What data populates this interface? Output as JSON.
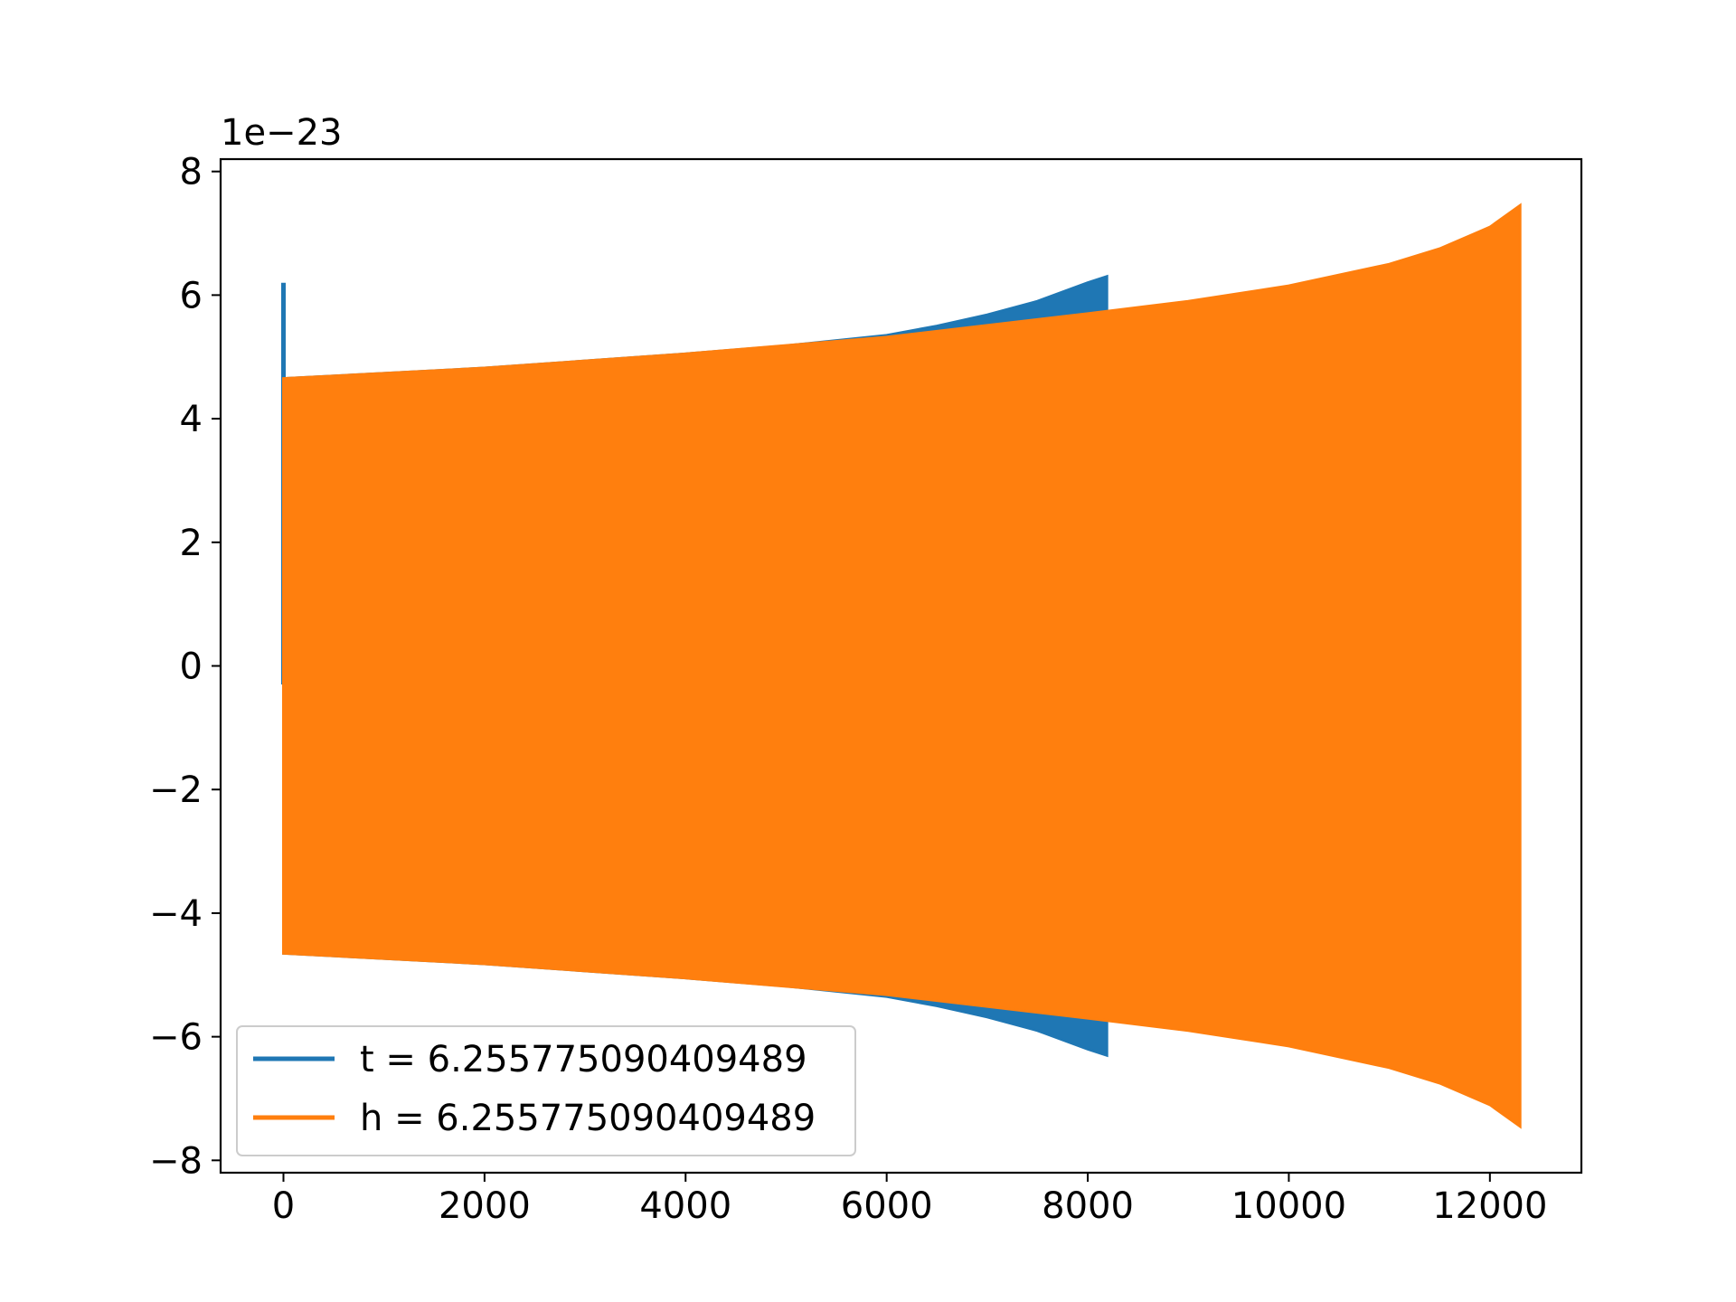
{
  "chart_data": {
    "type": "area",
    "title": "",
    "xlabel": "",
    "ylabel": "",
    "y_offset_text": "1e−23",
    "y_scale": 1e-23,
    "xlim": [
      -625,
      12910
    ],
    "ylim": [
      -8.2,
      8.2
    ],
    "grid": false,
    "legend_placement": "lower-left",
    "x_ticks": [
      {
        "value": 0,
        "label": "0"
      },
      {
        "value": 2000,
        "label": "2000"
      },
      {
        "value": 4000,
        "label": "4000"
      },
      {
        "value": 6000,
        "label": "6000"
      },
      {
        "value": 8000,
        "label": "8000"
      },
      {
        "value": 10000,
        "label": "10000"
      },
      {
        "value": 12000,
        "label": "12000"
      }
    ],
    "y_ticks": [
      {
        "value": 8,
        "label": "8"
      },
      {
        "value": 6,
        "label": "6"
      },
      {
        "value": 4,
        "label": "4"
      },
      {
        "value": 2,
        "label": "2"
      },
      {
        "value": 0,
        "label": "0"
      },
      {
        "value": -2,
        "label": "−2"
      },
      {
        "value": -4,
        "label": "−4"
      },
      {
        "value": -6,
        "label": "−6"
      },
      {
        "value": -8,
        "label": "−8"
      }
    ],
    "series": [
      {
        "name": "t = 6.255775090409489",
        "color": "#1f77b4",
        "spike": {
          "x": 0,
          "y": 6.2
        },
        "envelope_x": [
          0,
          2000,
          4000,
          5000,
          6000,
          6500,
          7000,
          7500,
          8000,
          8190
        ],
        "envelope_upper": [
          4.65,
          4.82,
          5.05,
          5.18,
          5.35,
          5.5,
          5.68,
          5.9,
          6.2,
          6.3
        ],
        "envelope_lower": [
          -4.65,
          -4.82,
          -5.05,
          -5.18,
          -5.35,
          -5.5,
          -5.68,
          -5.9,
          -6.2,
          -6.3
        ]
      },
      {
        "name": "h = 6.255775090409489",
        "color": "#ff7f0e",
        "envelope_x": [
          0,
          2000,
          4000,
          6000,
          8000,
          9000,
          10000,
          11000,
          11500,
          12000,
          12300
        ],
        "envelope_upper": [
          4.65,
          4.82,
          5.05,
          5.32,
          5.7,
          5.9,
          6.15,
          6.5,
          6.75,
          7.1,
          7.45
        ],
        "envelope_lower": [
          -4.65,
          -4.82,
          -5.05,
          -5.32,
          -5.7,
          -5.9,
          -6.15,
          -6.5,
          -6.75,
          -7.1,
          -7.45
        ]
      }
    ]
  }
}
